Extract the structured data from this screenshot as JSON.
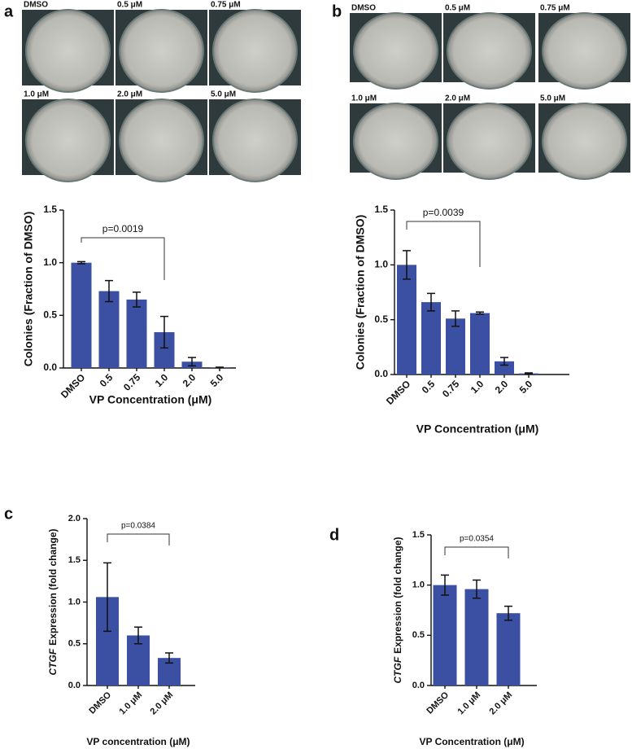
{
  "chart_data": [
    {
      "type": "bar",
      "panel": "a",
      "images": [
        "DMSO",
        "0.5 μM",
        "0.75 μM",
        "1.0 μM",
        "2.0 μM",
        "5.0 μM"
      ],
      "ylabel": "Colonies (Fraction of DMSO)",
      "xlabel": "VP Concentration (μM)",
      "categories": [
        "DMSO",
        "0.5",
        "0.75",
        "1.0",
        "2.0",
        "5.0"
      ],
      "values": [
        1.0,
        0.73,
        0.65,
        0.34,
        0.06,
        0.005
      ],
      "errors": [
        0.01,
        0.1,
        0.07,
        0.15,
        0.04,
        0.003
      ],
      "color": "#3b50a2",
      "ylim": [
        0,
        1.5
      ],
      "yticks": [
        {
          "value": 0,
          "label": "0.0"
        },
        0.5,
        {
          "value": 1,
          "label": "1.0"
        },
        1.5
      ],
      "annotation": "p=0.0019"
    },
    {
      "type": "bar",
      "panel": "b",
      "images": [
        "DMSO",
        "0.5 μM",
        "0.75 μM",
        "1.0 μM",
        "2.0 μM",
        "5.0 μM"
      ],
      "ylabel": "Colonies (Fraction of DMSO)",
      "xlabel": "VP Concentration (μM)",
      "categories": [
        "DMSO",
        "0.5",
        "0.75",
        "1.0",
        "2.0",
        "5.0"
      ],
      "values": [
        1.0,
        0.66,
        0.51,
        0.56,
        0.12,
        0.01
      ],
      "errors": [
        0.13,
        0.08,
        0.07,
        0.01,
        0.035,
        0.005
      ],
      "color": "#3b50a2",
      "ylim": [
        0,
        1.5
      ],
      "yticks": [
        {
          "value": 0,
          "label": "0.0"
        },
        0.5,
        {
          "value": 1,
          "label": "1.0"
        },
        1.5
      ],
      "annotation": "p=0.0039"
    },
    {
      "type": "bar",
      "panel": "c",
      "ylabel_italic": "CTGF",
      "ylabel": "Expression (fold change)",
      "xlabel": "VP concentration (μM)",
      "categories": [
        "DMSO",
        "1.0 μM",
        "2.0 μM"
      ],
      "values": [
        1.06,
        0.6,
        0.33
      ],
      "errors": [
        0.41,
        0.1,
        0.06
      ],
      "color": "#3b50a2",
      "ylim": [
        0,
        2
      ],
      "yticks": [
        {
          "value": 0,
          "label": "0.0"
        },
        0.5,
        {
          "value": 1,
          "label": "1.0"
        },
        1.5,
        {
          "value": 2,
          "label": "2.0"
        }
      ],
      "annotation": "p=0.0384"
    },
    {
      "type": "bar",
      "panel": "d",
      "ylabel_italic": "CTGF",
      "ylabel": "Expression (fold change)",
      "xlabel": "VP Concentration (μM)",
      "categories": [
        "DMSO",
        "1.0 μM",
        "2.0 μM"
      ],
      "values": [
        1.0,
        0.96,
        0.72
      ],
      "errors": [
        0.1,
        0.09,
        0.07
      ],
      "color": "#3b50a2",
      "ylim": [
        0,
        1.5
      ],
      "yticks": [
        {
          "value": 0,
          "label": "0.0"
        },
        0.5,
        {
          "value": 1,
          "label": "1.0"
        },
        1.5
      ],
      "annotation": "p=0.0354"
    }
  ]
}
